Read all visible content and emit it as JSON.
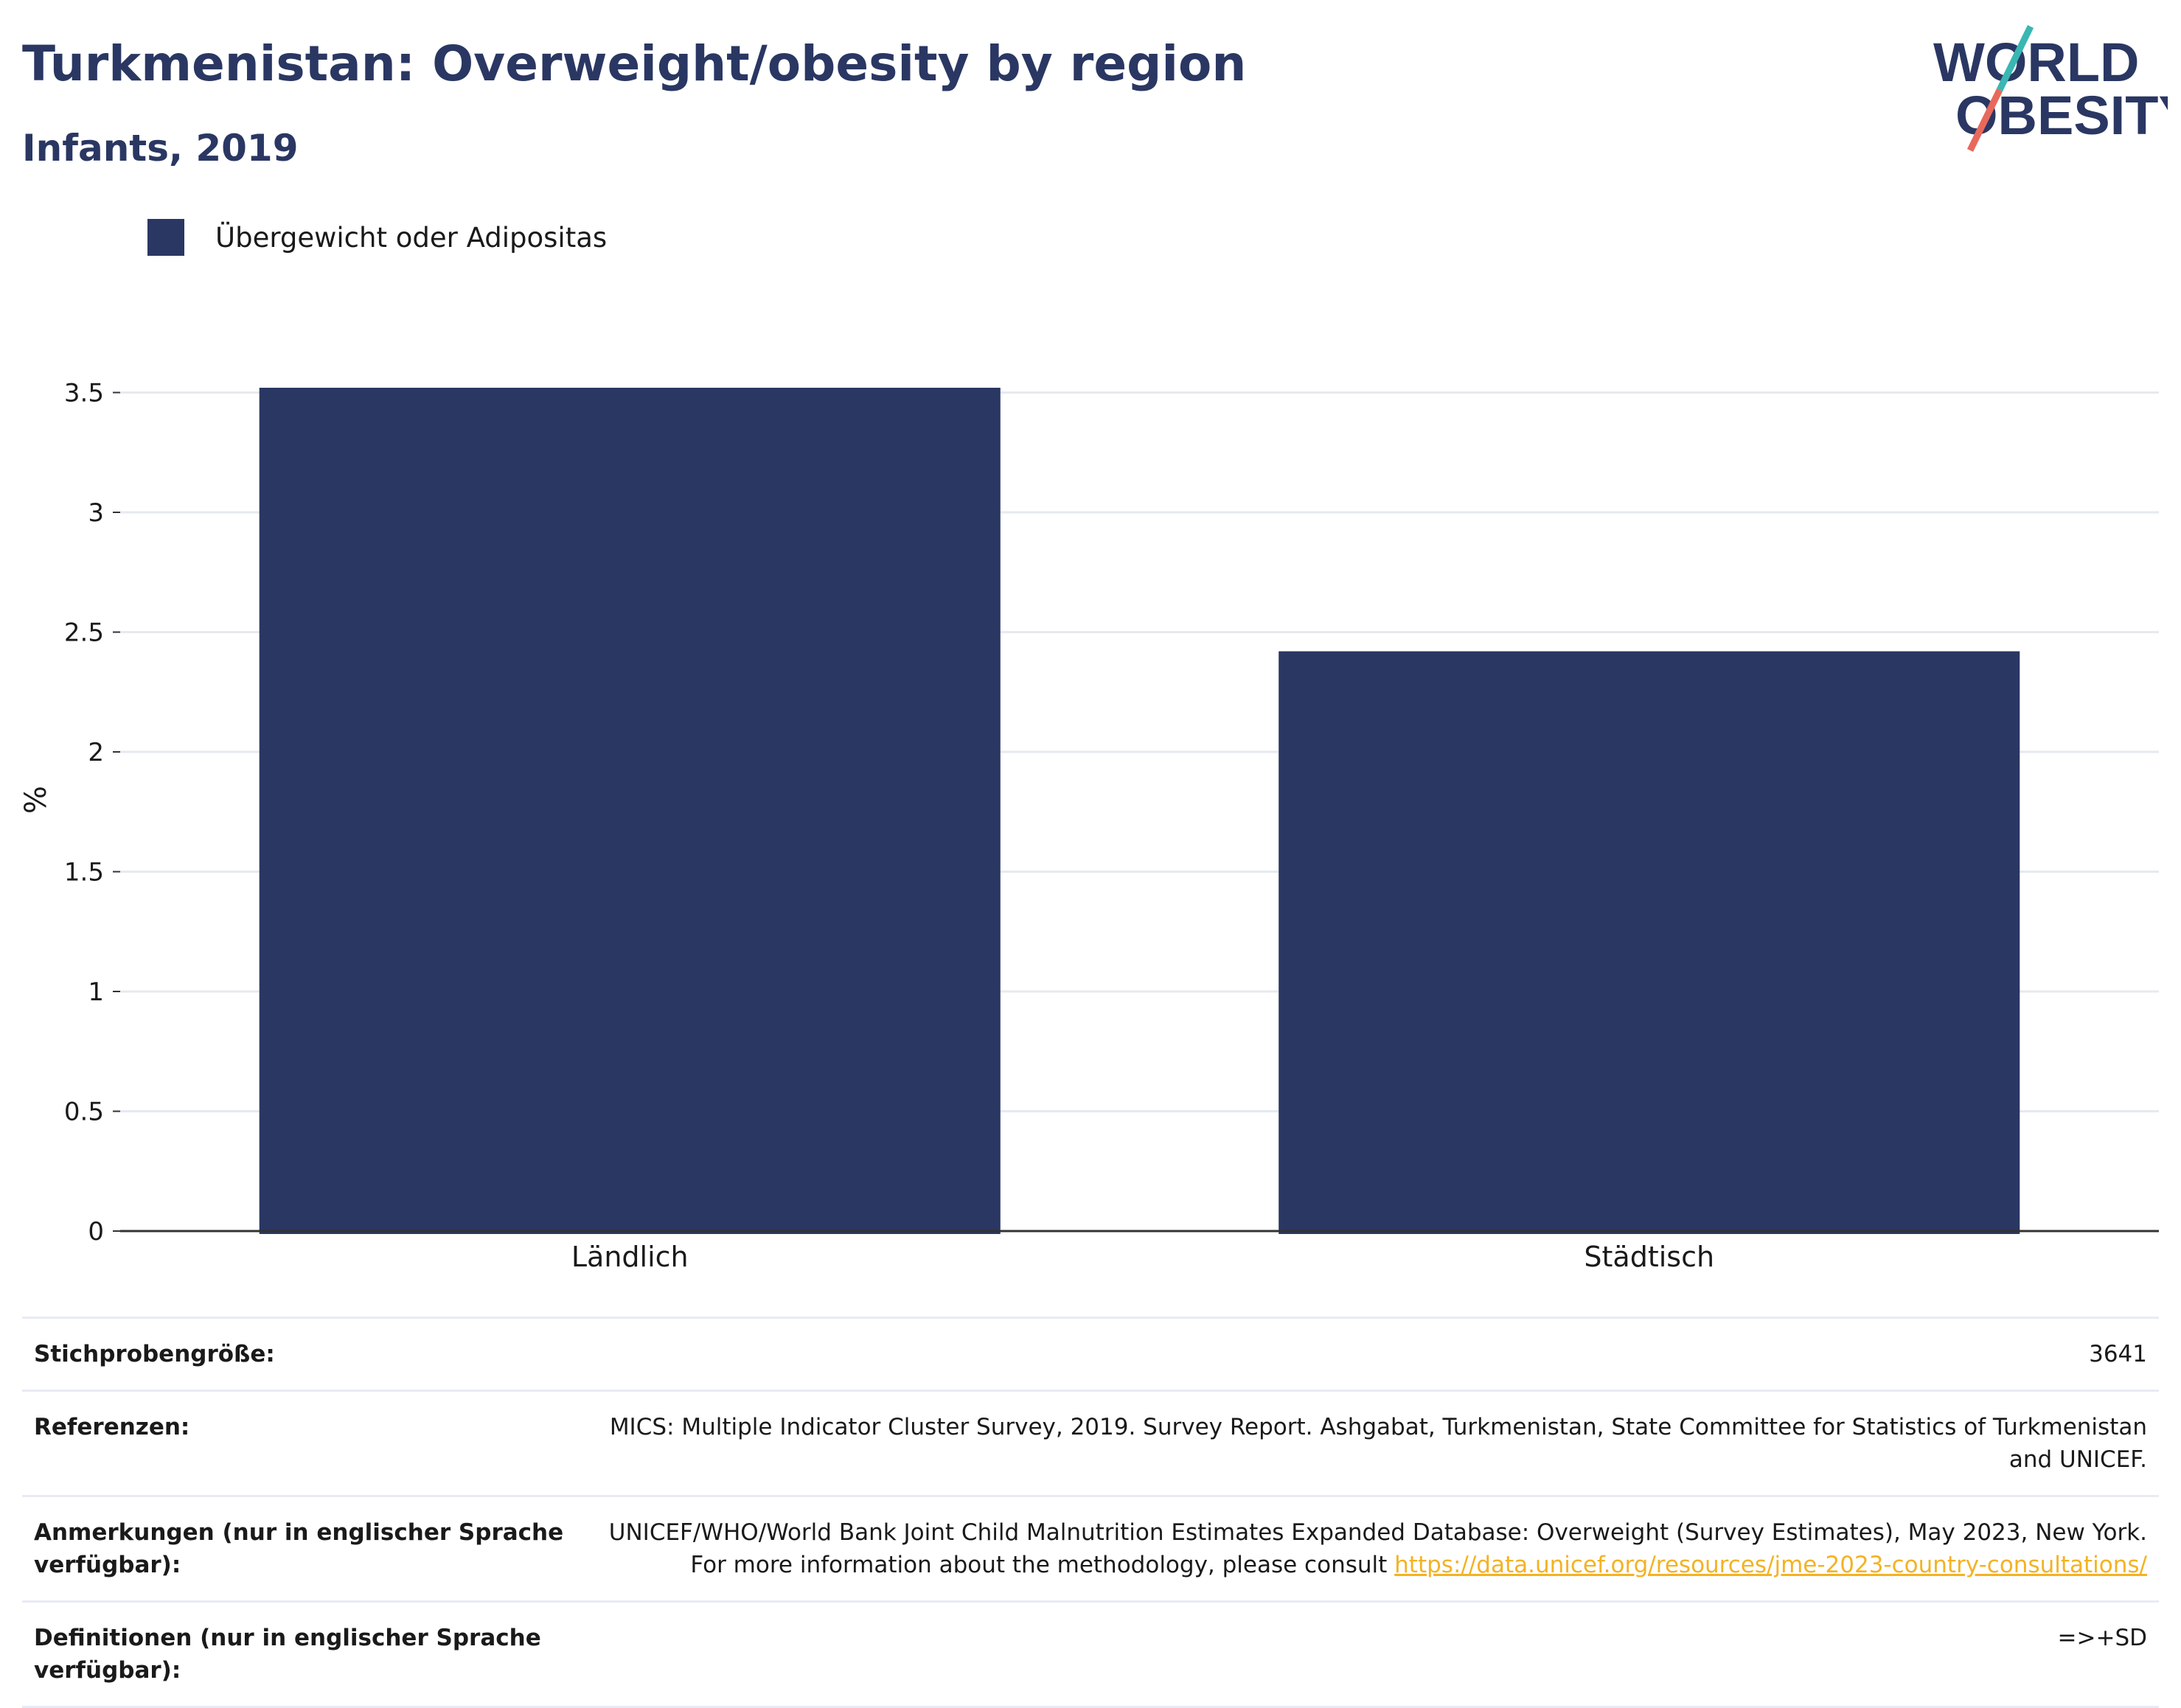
{
  "title": "Turkmenistan: Overweight/obesity by region",
  "subtitle": "Infants, 2019",
  "logo": {
    "line1": "WORLD",
    "line2": "OBESITY"
  },
  "legend": {
    "label": "Übergewicht oder Adipositas",
    "color": "#2a3763"
  },
  "chart_data": {
    "type": "bar",
    "categories": [
      "Ländlich",
      "Städtisch"
    ],
    "series": [
      {
        "name": "Übergewicht oder Adipositas",
        "values": [
          3.52,
          2.42
        ],
        "color": "#2a3763"
      }
    ],
    "title": "Turkmenistan: Overweight/obesity by region",
    "subtitle": "Infants, 2019",
    "xlabel": "",
    "ylabel": "%",
    "ylim": [
      0,
      3.5
    ],
    "yticks": [
      "0",
      "0.5",
      "1",
      "1.5",
      "2",
      "2.5",
      "3",
      "3.5"
    ],
    "grid": true,
    "legend_position": "top-left"
  },
  "info": {
    "sample_size_label": "Stichprobengröße:",
    "sample_size_value": "3641",
    "references_label": "Referenzen:",
    "references_value": "MICS: Multiple Indicator Cluster Survey, 2019. Survey Report. Ashgabat, Turkmenistan, State Committee for Statistics of Turkmenistan and UNICEF.",
    "notes_label": "Anmerkungen (nur in englischer Sprache verfügbar):",
    "notes_value": "UNICEF/WHO/World Bank Joint Child Malnutrition Estimates Expanded Database: Overweight (Survey Estimates), May 2023, New York. For more information about the methodology, please consult",
    "notes_link": "https://data.unicef.org/resources/jme-2023-country-consultations/",
    "definitions_label": "Definitionen (nur in englischer Sprache verfügbar):",
    "definitions_value": "=>+SD"
  }
}
